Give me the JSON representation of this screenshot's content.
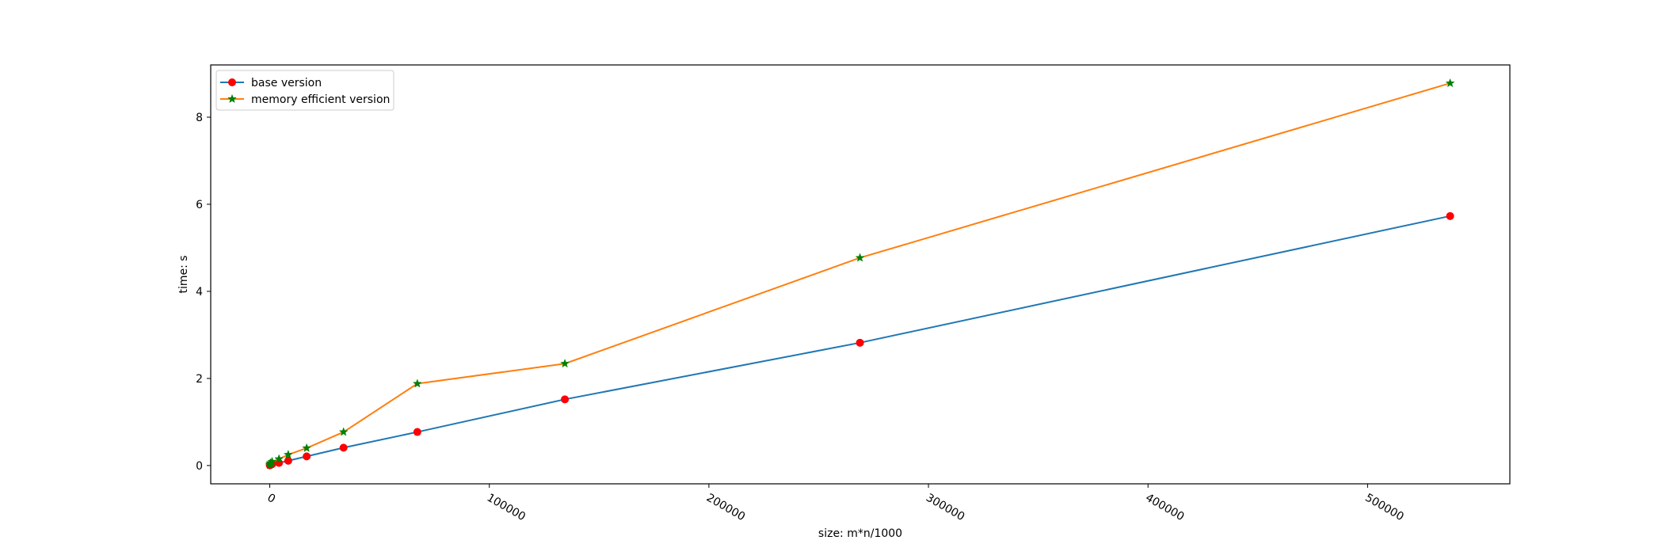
{
  "chart_data": {
    "type": "line",
    "title": "",
    "xlabel": "size: m*n/1000",
    "ylabel": "time: s",
    "xlim": [
      -26900,
      564800
    ],
    "ylim": [
      -0.42,
      9.2
    ],
    "xticks": [
      0,
      100000,
      200000,
      300000,
      400000,
      500000
    ],
    "yticks": [
      0,
      2,
      4,
      6,
      8
    ],
    "xtick_labels": [
      "0",
      "100000",
      "200000",
      "300000",
      "400000",
      "500000"
    ],
    "ytick_labels": [
      "0",
      "2",
      "4",
      "6",
      "8"
    ],
    "grid": false,
    "legend_position": "upper-left",
    "series": [
      {
        "name": "base version",
        "line_color": "#1f77b4",
        "marker": "circle",
        "marker_color": "#ff0000",
        "x": [
          0,
          60,
          260,
          1050,
          4200,
          8400,
          16800,
          33600,
          67200,
          134400,
          268800,
          537600
        ],
        "y": [
          0.005,
          0.01,
          0.02,
          0.03,
          0.06,
          0.11,
          0.21,
          0.41,
          0.77,
          1.52,
          2.82,
          5.73
        ]
      },
      {
        "name": "memory efficient version",
        "line_color": "#ff7f0e",
        "marker": "star",
        "marker_color": "#008000",
        "x": [
          0,
          60,
          260,
          1050,
          4200,
          8400,
          16800,
          33600,
          67200,
          134400,
          268800,
          537600
        ],
        "y": [
          0.01,
          0.03,
          0.06,
          0.09,
          0.15,
          0.25,
          0.4,
          0.77,
          1.88,
          2.34,
          4.77,
          8.78
        ]
      }
    ]
  }
}
